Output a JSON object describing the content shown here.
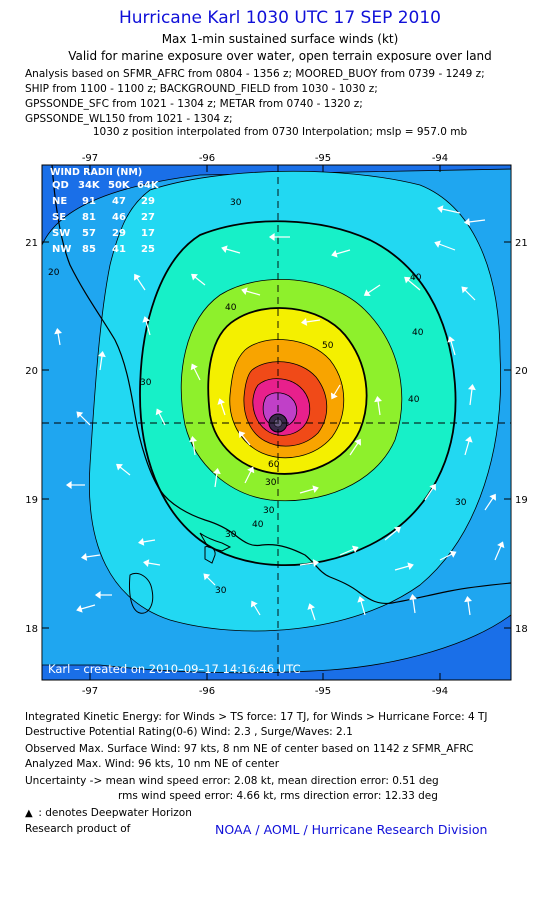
{
  "header": {
    "title": "Hurricane Karl 1030 UTC 17 SEP 2010",
    "subtitle1": "Max 1-min sustained surface winds (kt)",
    "subtitle2": "Valid for marine exposure over water, open terrain exposure over land",
    "analysis_lines": [
      "Analysis based on SFMR_AFRC from 0804 - 1356 z; MOORED_BUOY from 0739 - 1249 z;",
      "SHIP from 1100 - 1100 z; BACKGROUND_FIELD from 1030 - 1030 z;",
      "GPSSONDE_SFC from 1021 - 1304 z; METAR from 0740 - 1320 z;",
      "GPSSONDE_WL150 from 1021 - 1304 z;"
    ],
    "position_line": "1030 z position interpolated from 0730 Interpolation; mslp = 957.0 mb"
  },
  "map": {
    "lon_ticks": [
      "-97",
      "-96",
      "-95",
      "-94"
    ],
    "lat_ticks": [
      "21",
      "20",
      "19",
      "18"
    ],
    "wind_radii": {
      "title": "WIND RADII (NM)",
      "header": [
        "QD",
        "34K",
        "50K",
        "64K"
      ],
      "rows": [
        [
          "NE",
          "91",
          "47",
          "29"
        ],
        [
          "SE",
          "81",
          "46",
          "27"
        ],
        [
          "SW",
          "57",
          "29",
          "17"
        ],
        [
          "NW",
          "85",
          "41",
          "25"
        ]
      ]
    },
    "contour_labels": [
      "20",
      "30",
      "30",
      "30",
      "30",
      "40",
      "40",
      "40",
      "40",
      "50",
      "60",
      "30",
      "30",
      "30",
      "40"
    ],
    "created_text": "Karl – created on 2010–09–17 14:16:46 UTC",
    "colors": {
      "ocean_low": "#1a6fe8",
      "level_20": "#1fa6f0",
      "level_30": "#22d8f2",
      "level_40": "#17f0c8",
      "level_50": "#8ef02c",
      "level_60": "#f4f000",
      "level_70": "#f8a400",
      "level_80": "#f04a18",
      "level_90": "#e8208c",
      "level_96": "#c040c8"
    }
  },
  "footer": {
    "ike_line": "Integrated Kinetic Energy:  for Winds > TS force: 17 TJ,  for Winds > Hurricane Force: 4 TJ",
    "dpr_line": "Destructive Potential Rating(0-6)   Wind: 2.3 , Surge/Waves: 2.1",
    "obs_line": "Observed Max. Surface Wind: 97 kts, 8 nm NE of center based on 1142 z SFMR_AFRC",
    "ana_line": "Analyzed Max. Wind: 96 kts, 10 nm NE of center",
    "unc_line1": "Uncertainty -> mean wind speed error: 2.08 kt,   mean direction error: 0.51 deg",
    "unc_line2": "rms wind speed error: 4.66 kt,   rms direction error: 12.33 deg",
    "legend_line": ": denotes Deepwater Horizon",
    "research_line": "Research product of",
    "credit": "NOAA / AOML / Hurricane Research Division"
  }
}
